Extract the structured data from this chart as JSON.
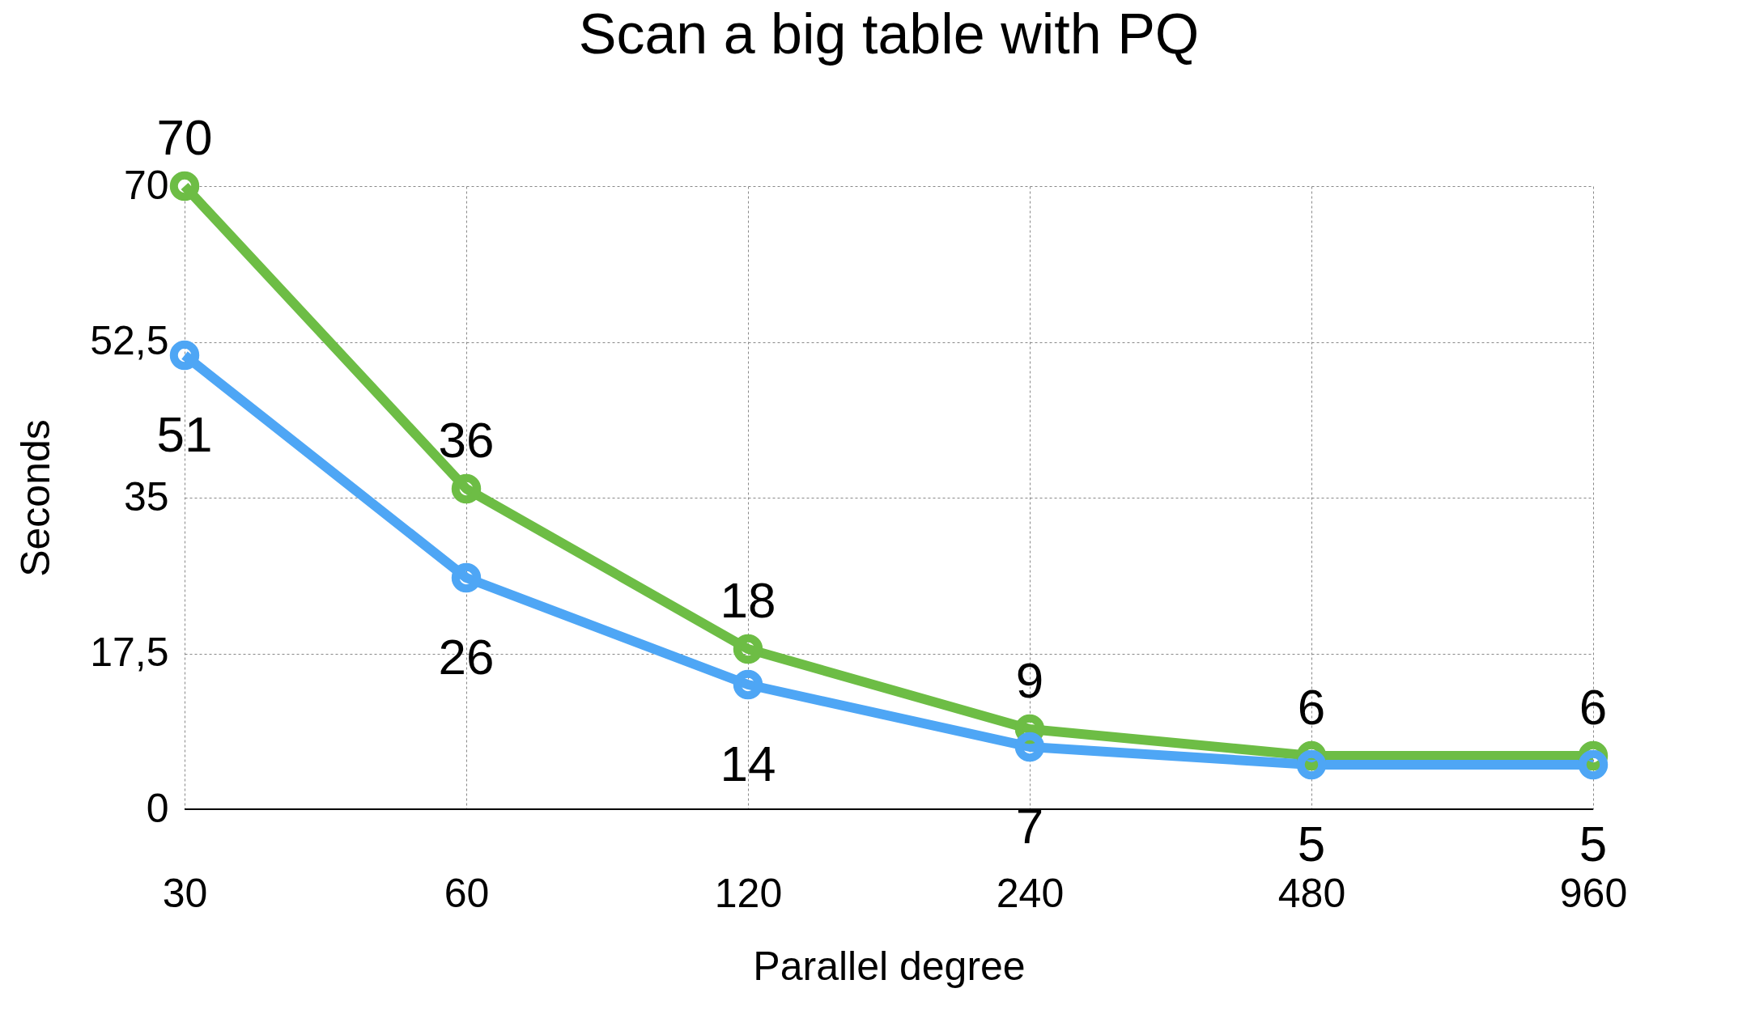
{
  "chart_data": {
    "type": "line",
    "title": "Scan a big table with PQ",
    "xlabel": "Parallel degree",
    "ylabel": "Seconds",
    "categories": [
      "30",
      "60",
      "120",
      "240",
      "480",
      "960"
    ],
    "series": [
      {
        "color": "#6dbd45",
        "values": [
          70,
          36,
          18,
          9,
          6,
          6
        ]
      },
      {
        "color": "#4ea6f5",
        "values": [
          51,
          26,
          14,
          7,
          5,
          5
        ]
      }
    ],
    "ylim": [
      0,
      70
    ],
    "yticks": [
      0,
      {
        "value": 17.5,
        "label": "17,5"
      },
      35,
      {
        "value": 52.5,
        "label": "52,5"
      },
      70
    ],
    "grid": true,
    "marker": "circle",
    "line_style": "solid",
    "data_labels": true
  }
}
